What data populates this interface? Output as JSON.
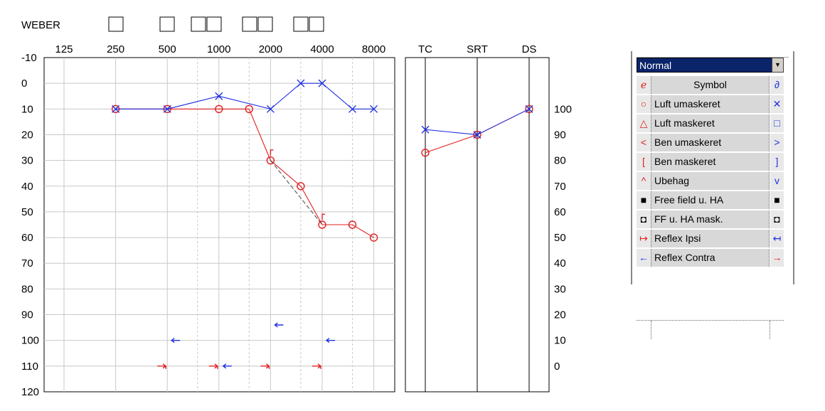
{
  "weber_label": "WEBER",
  "speech": {
    "columns": [
      "TC",
      "SRT",
      "DS"
    ],
    "right_ticks": [
      "100",
      "90",
      "80",
      "70",
      "60",
      "50",
      "40",
      "30",
      "20",
      "10",
      "0"
    ]
  },
  "chart_data": {
    "type": "line",
    "x_ticks": [
      "125",
      "250",
      "500",
      "1000",
      "2000",
      "4000",
      "8000"
    ],
    "y_ticks": [
      "-10",
      "0",
      "10",
      "20",
      "30",
      "40",
      "50",
      "60",
      "70",
      "80",
      "90",
      "100",
      "110",
      "120"
    ],
    "ylim": [
      -10,
      120
    ],
    "y_inverted": true,
    "x_scale": "log",
    "grid": true,
    "series": [
      {
        "color": "#e02020",
        "marker": "circle",
        "x": [
          250,
          500,
          1000,
          1500,
          2000,
          3000,
          4000,
          6000,
          8000
        ],
        "y": [
          10,
          10,
          10,
          10,
          30,
          40,
          55,
          55,
          60
        ]
      },
      {
        "color": "#2030e0",
        "marker": "cross",
        "x": [
          250,
          500,
          1000,
          2000,
          3000,
          4000,
          6000,
          8000
        ],
        "y": [
          10,
          10,
          5,
          10,
          0,
          0,
          10,
          10
        ]
      },
      {
        "color": "#e02020",
        "marker": "bracket",
        "x": [
          2000,
          4000
        ],
        "y": [
          27,
          52
        ]
      },
      {
        "color": "#555555",
        "marker": "none",
        "dashed": true,
        "x": [
          2000,
          4000
        ],
        "y": [
          30,
          55
        ]
      },
      {
        "color": "#2030e0",
        "marker": "arrow-left",
        "x": [
          500,
          2000,
          4000
        ],
        "y": [
          100,
          94,
          100
        ]
      },
      {
        "color": "#e02020",
        "marker": "arrow-right",
        "x": [
          500,
          1000,
          2000,
          4000
        ],
        "y": [
          110,
          110,
          110,
          110
        ]
      },
      {
        "color": "#2030e0",
        "marker": "arrow-left",
        "x": [
          1000
        ],
        "y": [
          110
        ]
      }
    ],
    "speech_series": [
      {
        "color": "#e02020",
        "marker": "circle",
        "x": [
          "TC",
          "SRT",
          "DS"
        ],
        "y": [
          83,
          90,
          100
        ]
      },
      {
        "color": "#2030e0",
        "marker": "cross",
        "x": [
          "TC",
          "SRT",
          "DS"
        ],
        "y": [
          92,
          90,
          100
        ]
      }
    ]
  },
  "legend": {
    "dropdown_value": "Normal",
    "header": "Symbol",
    "rows": [
      {
        "label": "Luft umaskeret",
        "left": "○",
        "right": "✕",
        "left_color": "#e02020",
        "right_color": "#2030e0"
      },
      {
        "label": "Luft maskeret",
        "left": "△",
        "right": "□",
        "left_color": "#e02020",
        "right_color": "#2030e0"
      },
      {
        "label": "Ben umaskeret",
        "left": "<",
        "right": ">",
        "left_color": "#e02020",
        "right_color": "#2030e0"
      },
      {
        "label": "Ben maskeret",
        "left": "[",
        "right": "]",
        "left_color": "#e02020",
        "right_color": "#2030e0"
      },
      {
        "label": "Ubehag",
        "left": "^",
        "right": "v",
        "left_color": "#e02020",
        "right_color": "#2030e0"
      },
      {
        "label": "Free field u. HA",
        "left": "■",
        "right": "■",
        "left_color": "#000000",
        "right_color": "#000000"
      },
      {
        "label": "FF u. HA mask.",
        "left": "◘",
        "right": "◘",
        "left_color": "#000000",
        "right_color": "#000000"
      },
      {
        "label": "Reflex Ipsi",
        "left": "↦",
        "right": "↤",
        "left_color": "#e02020",
        "right_color": "#2030e0"
      },
      {
        "label": "Reflex Contra",
        "left": "←",
        "right": "→",
        "left_color": "#2030e0",
        "right_color": "#e02020"
      }
    ]
  }
}
